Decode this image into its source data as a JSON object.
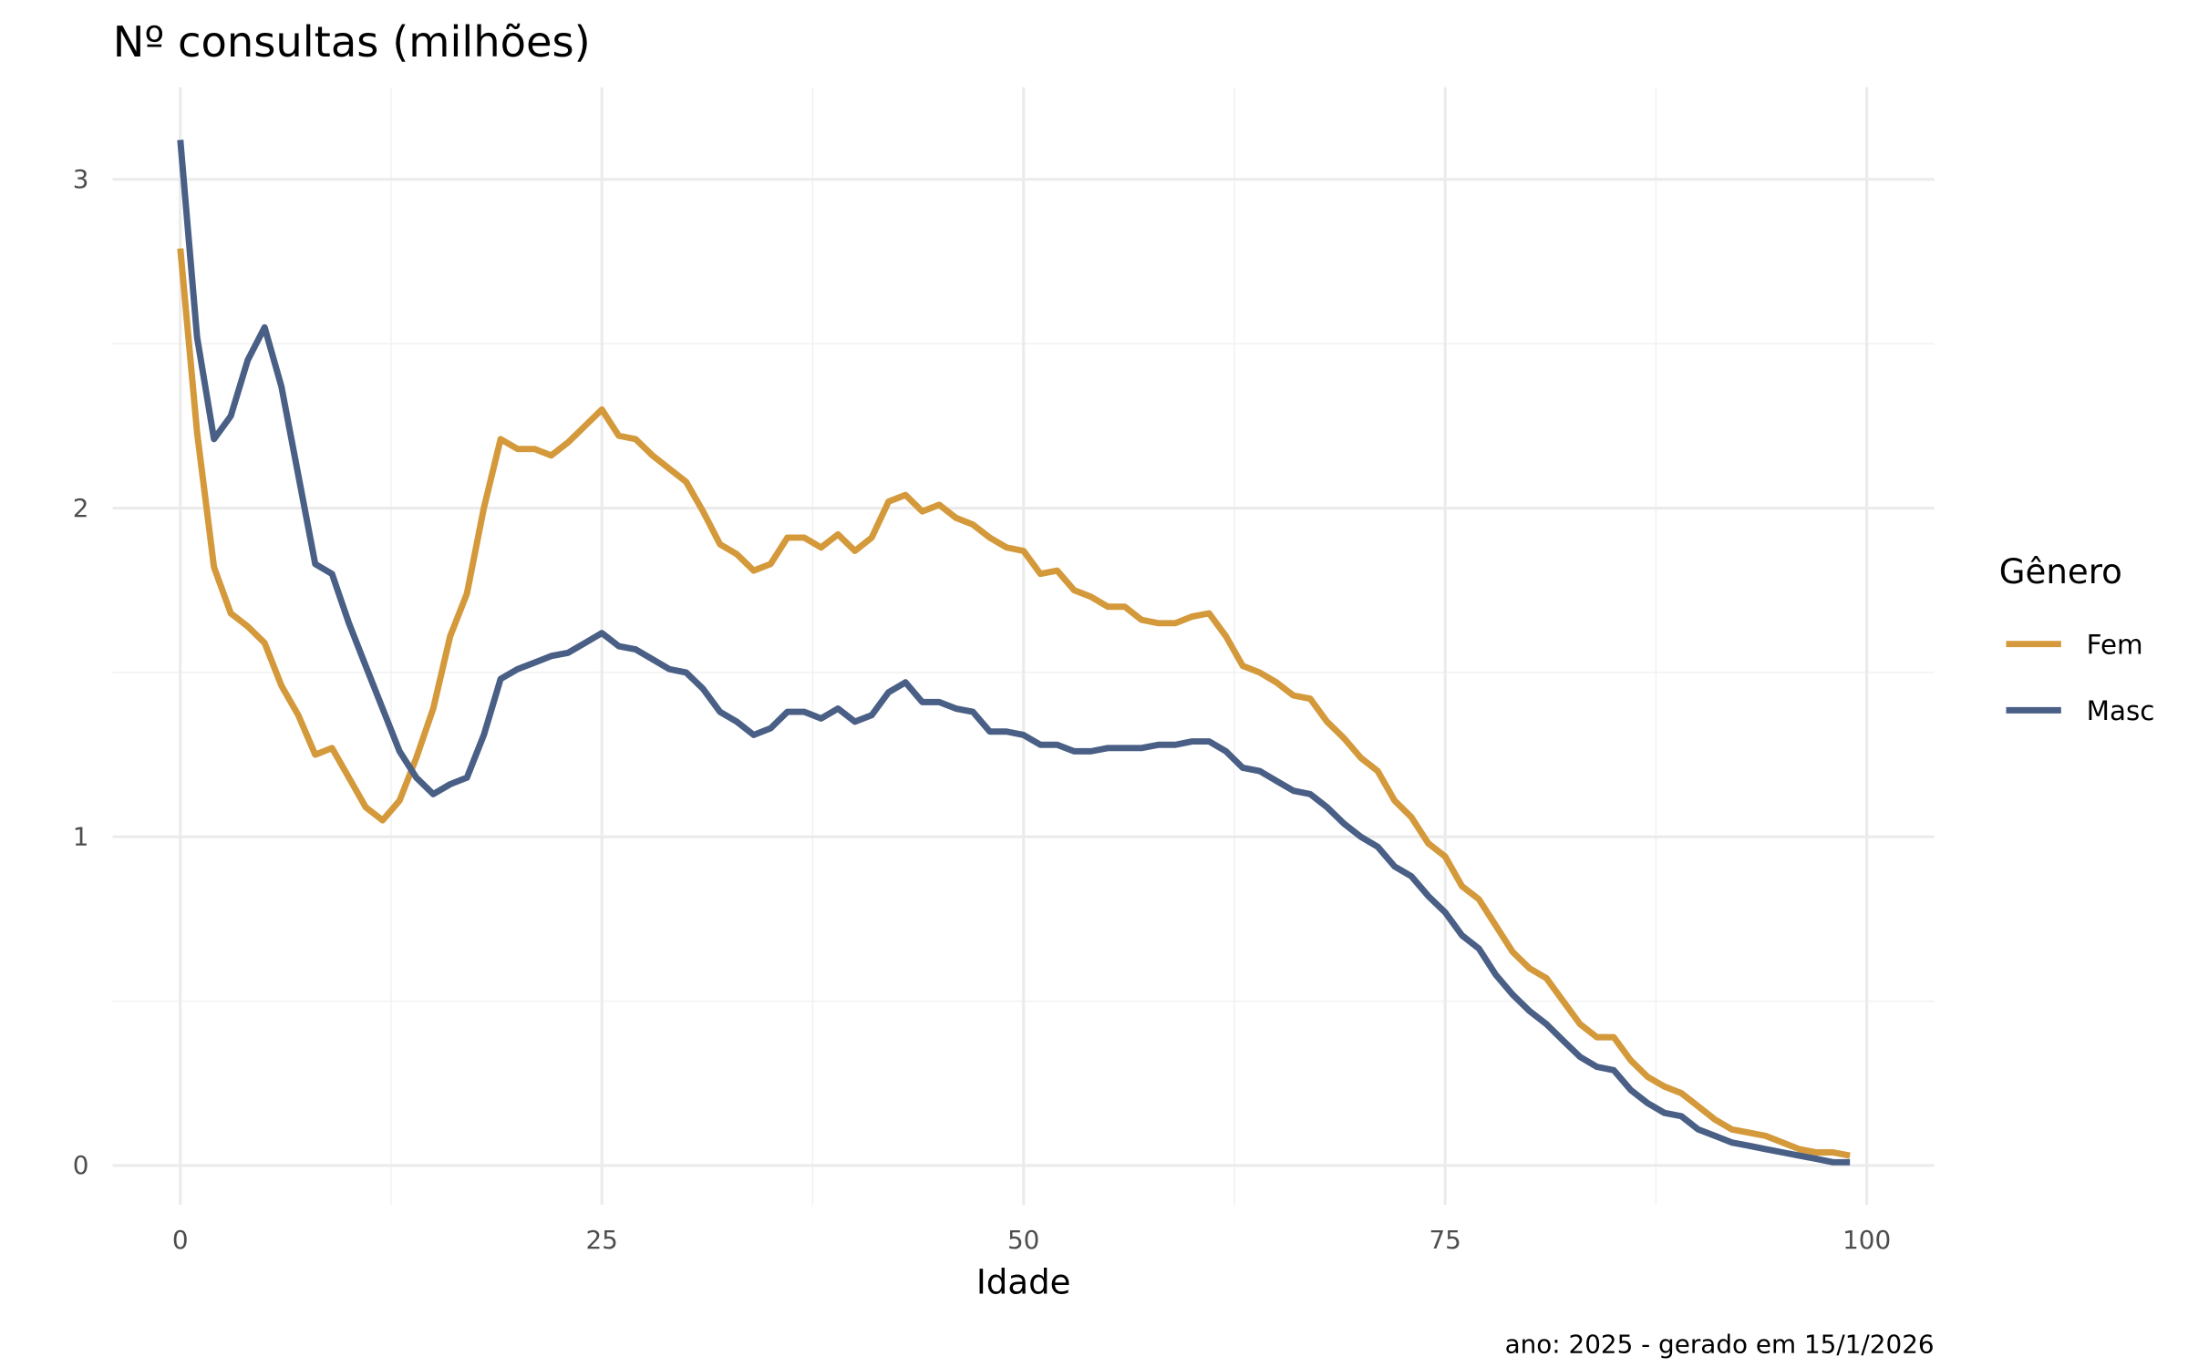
{
  "chart_data": {
    "type": "line",
    "title": "Nº consultas (milhões)",
    "xlabel": "Idade",
    "ylabel": "",
    "caption": "ano: 2025 - gerado em 15/1/2026",
    "xlim": [
      -4,
      104
    ],
    "ylim": [
      -0.12,
      3.28
    ],
    "xticks": [
      0,
      25,
      50,
      75,
      100
    ],
    "xtick_labels": [
      "0",
      "25",
      "50",
      "75",
      "100"
    ],
    "yticks": [
      0,
      1,
      2,
      3
    ],
    "ytick_labels": [
      "0",
      "1",
      "2",
      "3"
    ],
    "grid": true,
    "legend": {
      "title": "Gênero",
      "placement": "right"
    },
    "x": [
      0,
      1,
      2,
      3,
      4,
      5,
      6,
      7,
      8,
      9,
      10,
      11,
      12,
      13,
      14,
      15,
      16,
      17,
      18,
      19,
      20,
      21,
      22,
      23,
      24,
      25,
      26,
      27,
      28,
      29,
      30,
      31,
      32,
      33,
      34,
      35,
      36,
      37,
      38,
      39,
      40,
      41,
      42,
      43,
      44,
      45,
      46,
      47,
      48,
      49,
      50,
      51,
      52,
      53,
      54,
      55,
      56,
      57,
      58,
      59,
      60,
      61,
      62,
      63,
      64,
      65,
      66,
      67,
      68,
      69,
      70,
      71,
      72,
      73,
      74,
      75,
      76,
      77,
      78,
      79,
      80,
      81,
      82,
      83,
      84,
      85,
      86,
      87,
      88,
      89,
      90,
      91,
      92,
      93,
      94,
      95,
      96,
      97,
      98,
      99
    ],
    "series": [
      {
        "name": "Fem",
        "color": "#d4993a",
        "values": [
          2.79,
          2.23,
          1.82,
          1.68,
          1.64,
          1.59,
          1.46,
          1.37,
          1.25,
          1.27,
          1.18,
          1.09,
          1.05,
          1.11,
          1.24,
          1.39,
          1.61,
          1.74,
          2.0,
          2.21,
          2.18,
          2.18,
          2.16,
          2.2,
          2.25,
          2.3,
          2.22,
          2.21,
          2.16,
          2.12,
          2.08,
          1.99,
          1.89,
          1.86,
          1.81,
          1.83,
          1.91,
          1.91,
          1.88,
          1.92,
          1.87,
          1.91,
          2.02,
          2.04,
          1.99,
          2.01,
          1.97,
          1.95,
          1.91,
          1.88,
          1.87,
          1.8,
          1.81,
          1.75,
          1.73,
          1.7,
          1.7,
          1.66,
          1.65,
          1.65,
          1.67,
          1.68,
          1.61,
          1.52,
          1.5,
          1.47,
          1.43,
          1.42,
          1.35,
          1.3,
          1.24,
          1.2,
          1.11,
          1.06,
          0.98,
          0.94,
          0.85,
          0.81,
          0.73,
          0.65,
          0.6,
          0.57,
          0.5,
          0.43,
          0.39,
          0.39,
          0.32,
          0.27,
          0.24,
          0.22,
          0.18,
          0.14,
          0.11,
          0.1,
          0.09,
          0.07,
          0.05,
          0.04,
          0.04,
          0.03
        ]
      },
      {
        "name": "Masc",
        "color": "#4a5f85",
        "values": [
          3.12,
          2.52,
          2.21,
          2.28,
          2.45,
          2.55,
          2.37,
          2.1,
          1.83,
          1.8,
          1.65,
          1.52,
          1.39,
          1.26,
          1.18,
          1.13,
          1.16,
          1.18,
          1.31,
          1.48,
          1.51,
          1.53,
          1.55,
          1.56,
          1.59,
          1.62,
          1.58,
          1.57,
          1.54,
          1.51,
          1.5,
          1.45,
          1.38,
          1.35,
          1.31,
          1.33,
          1.38,
          1.38,
          1.36,
          1.39,
          1.35,
          1.37,
          1.44,
          1.47,
          1.41,
          1.41,
          1.39,
          1.38,
          1.32,
          1.32,
          1.31,
          1.28,
          1.28,
          1.26,
          1.26,
          1.27,
          1.27,
          1.27,
          1.28,
          1.28,
          1.29,
          1.29,
          1.26,
          1.21,
          1.2,
          1.17,
          1.14,
          1.13,
          1.09,
          1.04,
          1.0,
          0.97,
          0.91,
          0.88,
          0.82,
          0.77,
          0.7,
          0.66,
          0.58,
          0.52,
          0.47,
          0.43,
          0.38,
          0.33,
          0.3,
          0.29,
          0.23,
          0.19,
          0.16,
          0.15,
          0.11,
          0.09,
          0.07,
          0.06,
          0.05,
          0.04,
          0.03,
          0.02,
          0.01,
          0.01
        ]
      }
    ]
  }
}
